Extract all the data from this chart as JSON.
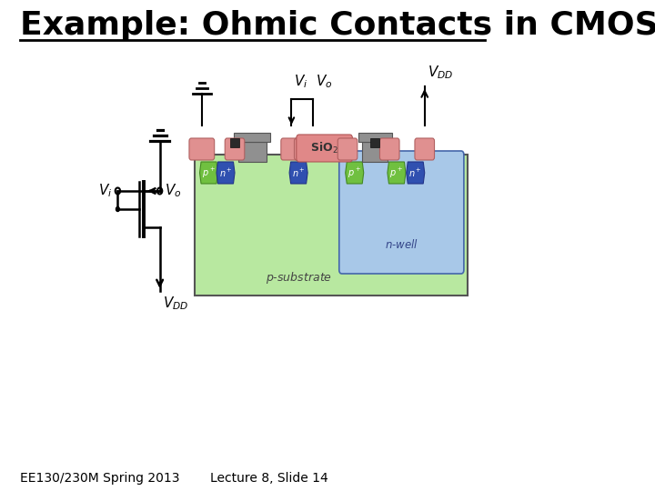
{
  "title": "Example: Ohmic Contacts in CMOS",
  "footer_left": "EE130/230M Spring 2013",
  "footer_right": "Lecture 8, Slide 14",
  "bg_color": "#ffffff",
  "title_fontsize": 26,
  "footer_fontsize": 10,
  "colors": {
    "p_substrate": "#b8e8a0",
    "n_well": "#a8c8e8",
    "silicide_pink": "#e89090",
    "gate_gray": "#909090",
    "metal_dark": "#404040",
    "p_plus_green": "#70c040",
    "n_plus_blue": "#3050b0",
    "sio2_pink": "#e89090",
    "wire": "#000000"
  }
}
